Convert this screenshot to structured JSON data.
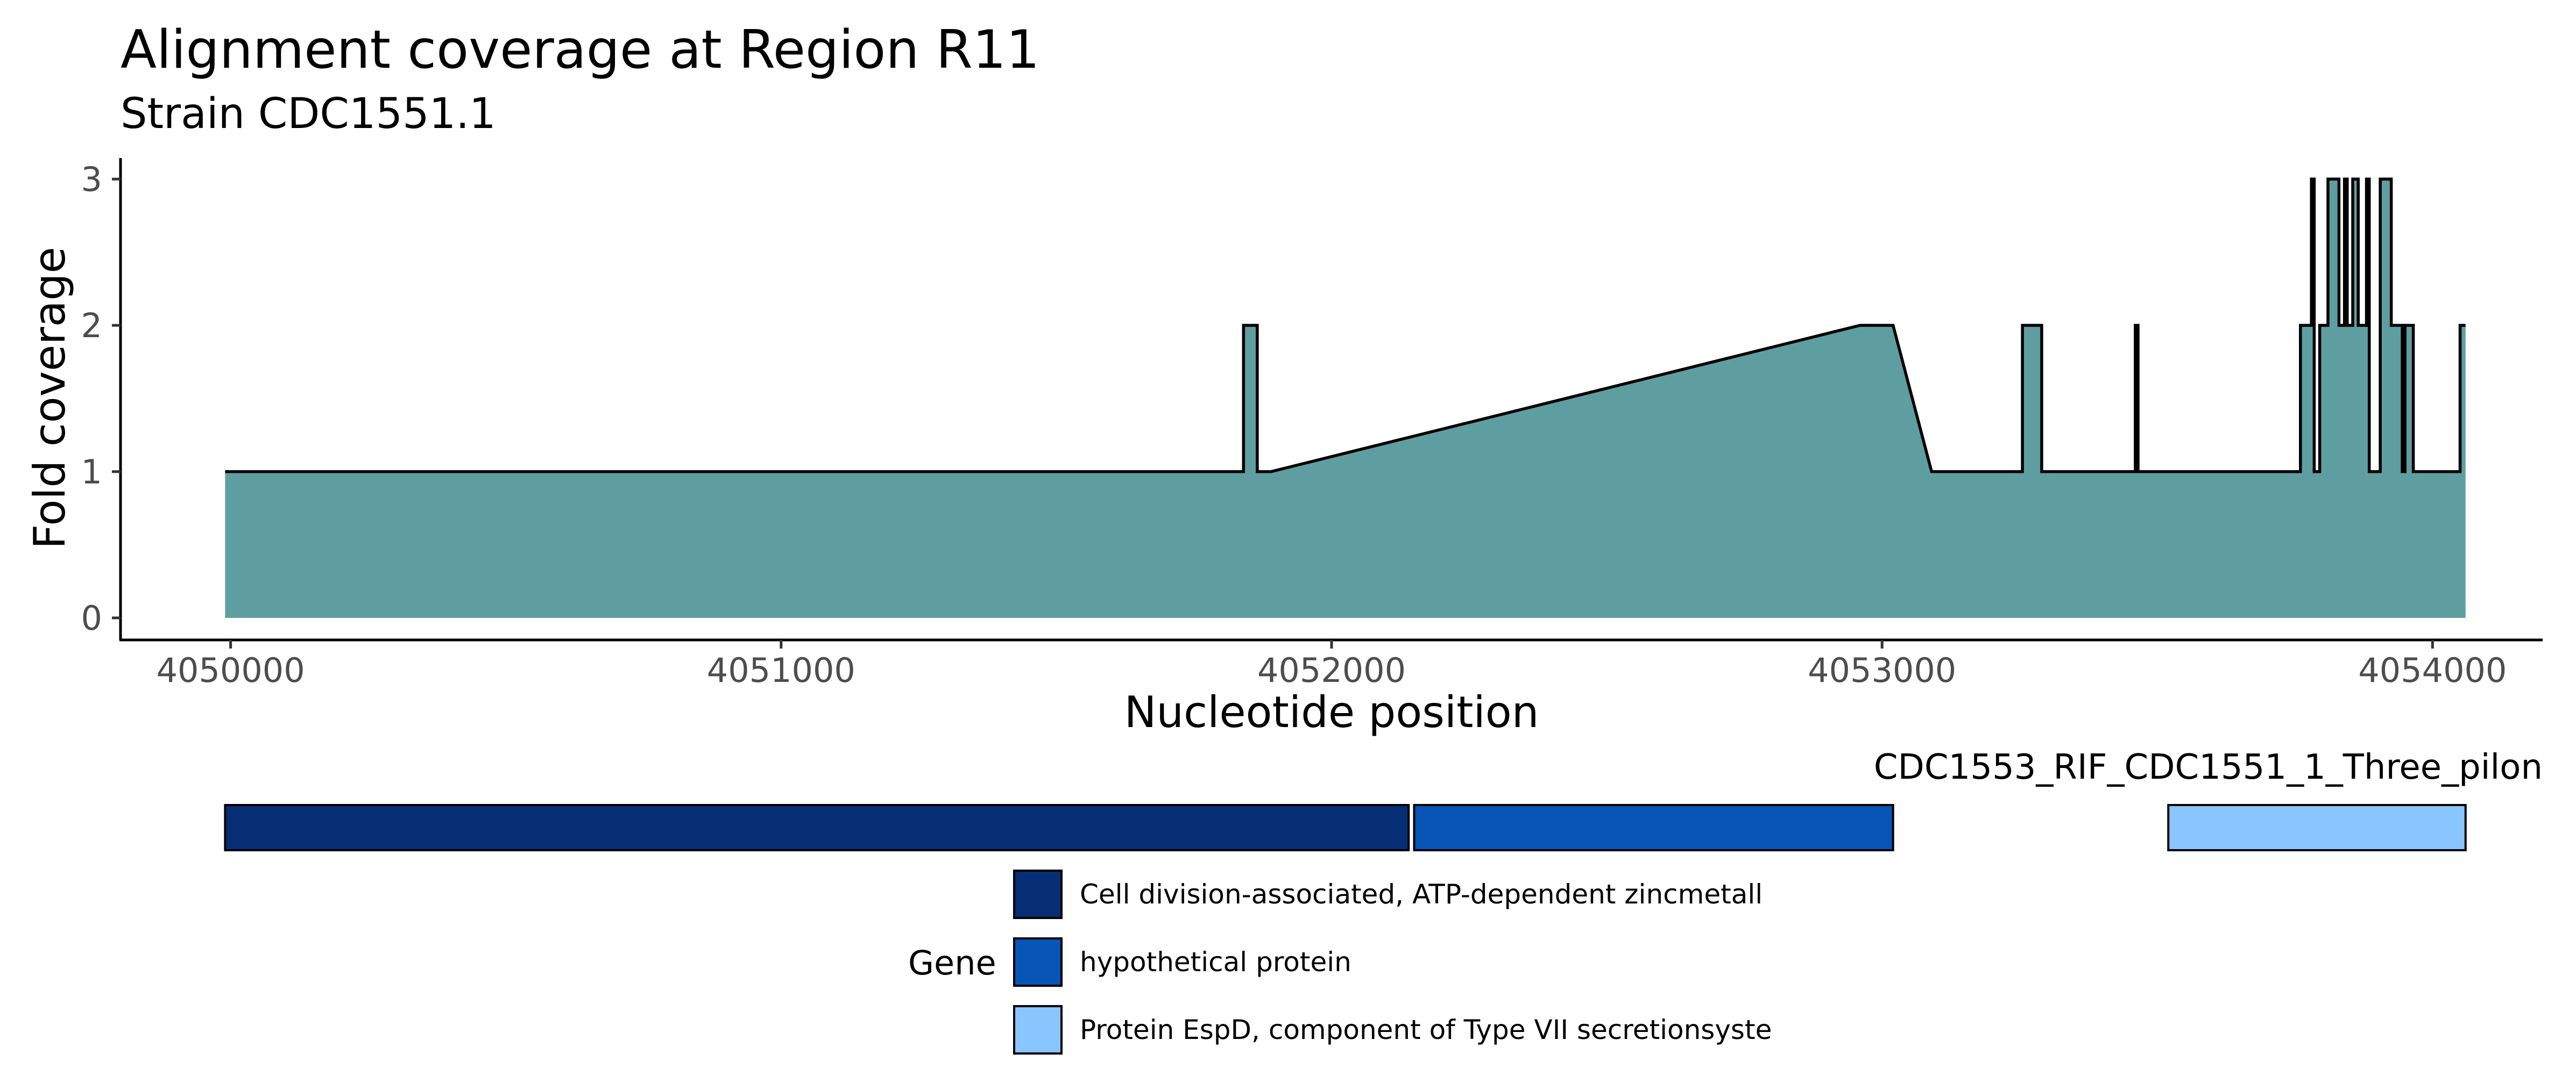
{
  "chart_data": [
    {
      "type": "area",
      "title": "Alignment coverage at Region R11",
      "subtitle": "Strain CDC1551.1",
      "xlabel": "Nucleotide position",
      "ylabel": "Fold coverage",
      "xlim": [
        4049800,
        4054200
      ],
      "ylim": [
        0,
        3
      ],
      "xticks": [
        4050000,
        4051000,
        4052000,
        4053000,
        4054000
      ],
      "xtick_labels": [
        "4050000",
        "4051000",
        "4052000",
        "4053000",
        "4054000"
      ],
      "yticks": [
        0,
        1,
        2,
        3
      ],
      "ytick_labels": [
        "0",
        "1",
        "2",
        "3"
      ],
      "grid": false,
      "fill_color": "#5F9EA0",
      "line_color": "#000000",
      "x": [
        4049990,
        4051840,
        4051840,
        4051865,
        4051865,
        4051890,
        4052960,
        4053020,
        4053090,
        4053255,
        4053255,
        4053290,
        4053290,
        4053460,
        4053460,
        4053465,
        4053465,
        4053760,
        4053760,
        4053780,
        4053780,
        4053785,
        4053785,
        4053795,
        4053795,
        4053810,
        4053810,
        4053830,
        4053830,
        4053840,
        4053840,
        4053845,
        4053845,
        4053855,
        4053855,
        4053865,
        4053865,
        4053880,
        4053880,
        4053885,
        4053885,
        4053905,
        4053905,
        4053925,
        4053925,
        4053945,
        4053945,
        4053950,
        4053950,
        4053965,
        4053965,
        4054050,
        4054050,
        4054060
      ],
      "y": [
        1,
        1,
        2,
        2,
        1,
        1,
        2,
        2,
        1,
        1,
        2,
        2,
        1,
        1,
        2,
        2,
        1,
        1,
        2,
        2,
        3,
        3,
        1,
        1,
        2,
        2,
        3,
        3,
        2,
        2,
        3,
        3,
        2,
        2,
        3,
        3,
        2,
        2,
        3,
        3,
        1,
        1,
        3,
        3,
        2,
        2,
        1,
        1,
        2,
        2,
        1,
        1,
        2,
        2
      ]
    },
    {
      "type": "gene-track",
      "label": "CDC1553_RIF_CDC1551_1_Three_pilon",
      "genes": [
        {
          "start": 4049990,
          "end": 4052140,
          "product": "Cell division-associated, ATP-dependent zincmetall",
          "color": "#062E74"
        },
        {
          "start": 4052150,
          "end": 4053020,
          "product": "hypothetical protein",
          "color": "#0655B7"
        },
        {
          "start": 4053520,
          "end": 4054060,
          "product": "Protein EspD, component of Type VII secretionsyste",
          "color": "#89C5FF"
        }
      ],
      "legend": {
        "title": "Gene",
        "entries": [
          {
            "label": "Cell division-associated, ATP-dependent zincmetall",
            "color": "#062E74"
          },
          {
            "label": "hypothetical protein",
            "color": "#0655B7"
          },
          {
            "label": "Protein EspD, component of Type VII secretionsyste",
            "color": "#89C5FF"
          }
        ]
      }
    }
  ]
}
